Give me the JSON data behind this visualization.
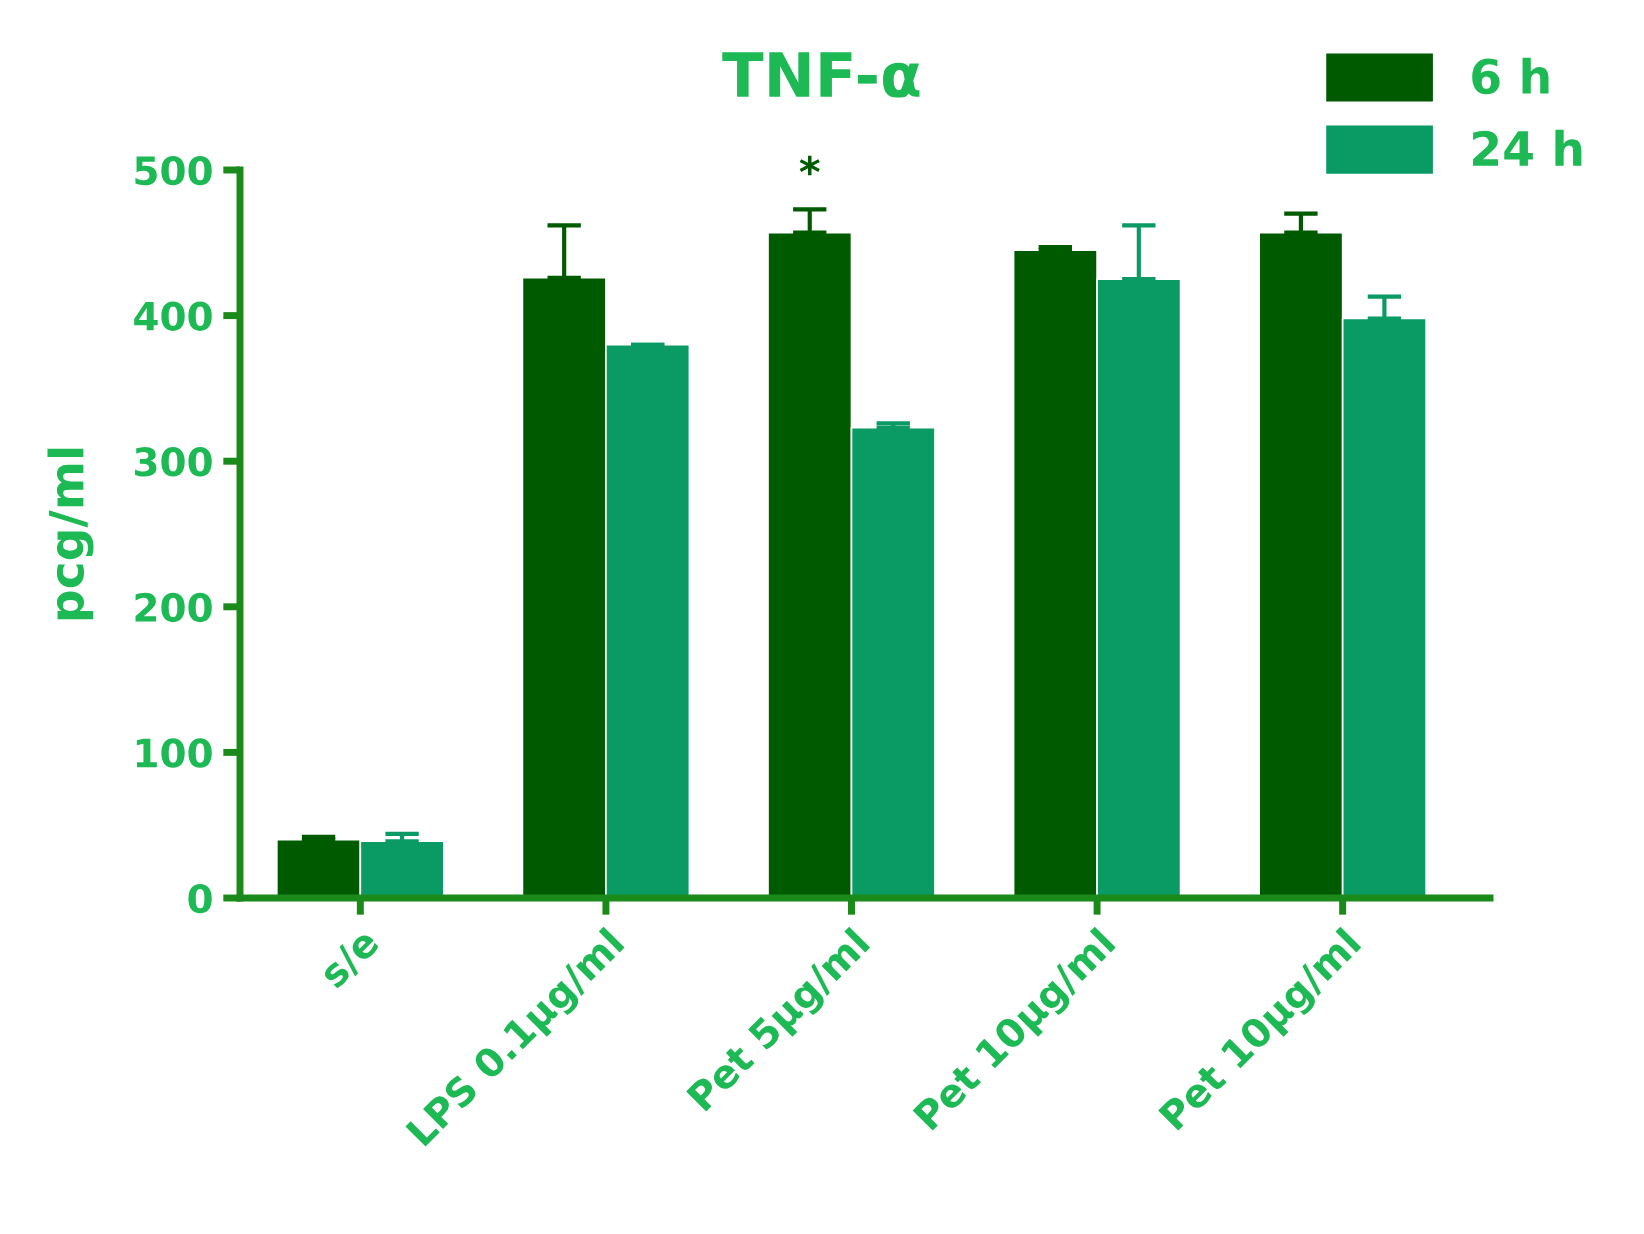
{
  "chart_data": {
    "type": "bar",
    "title": "TNF-α",
    "ylabel": "pcg/ml",
    "categories": [
      "s/e",
      "LPS 0.1µg/ml",
      "Pet 5µg/ml",
      "Pet 10µg/ml",
      "Pet 10µg/ml"
    ],
    "series": [
      {
        "name": "6 h",
        "color": "#005a00",
        "values": [
          40,
          426,
          457,
          445,
          457
        ],
        "errors": [
          [
            40,
            42
          ],
          [
            426,
            462
          ],
          [
            457,
            473
          ],
          [
            445,
            447
          ],
          [
            457,
            470
          ]
        ]
      },
      {
        "name": "24 h",
        "color": "#0a9a64",
        "values": [
          39,
          380,
          323,
          425,
          398
        ],
        "errors": [
          [
            39,
            44
          ],
          [
            380,
            380
          ],
          [
            323,
            326
          ],
          [
            425,
            462
          ],
          [
            398,
            413
          ]
        ]
      }
    ],
    "ylim": [
      0,
      500
    ],
    "yticks": [
      0,
      100,
      200,
      300,
      400,
      500
    ],
    "grid": false,
    "legend": "top right",
    "annotations": [
      "*"
    ]
  }
}
